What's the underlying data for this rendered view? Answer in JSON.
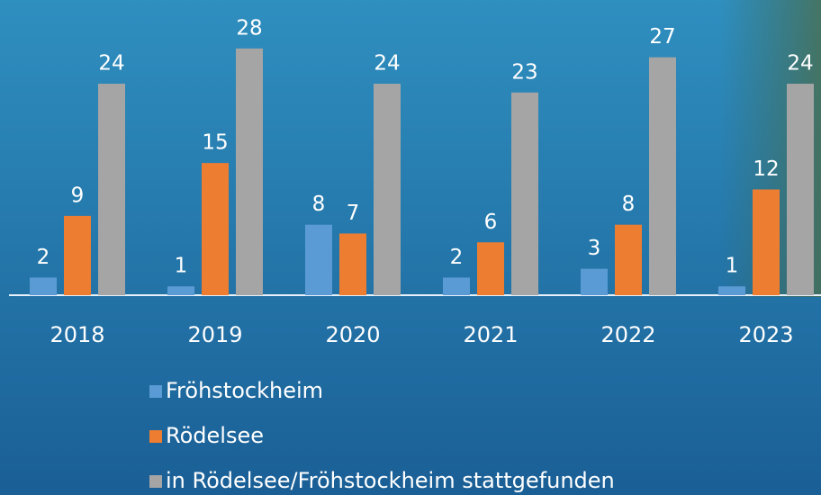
{
  "chart_data": {
    "type": "bar",
    "categories": [
      "2018",
      "2019",
      "2020",
      "2021",
      "2022",
      "2023"
    ],
    "series": [
      {
        "name": "Fröhstockheim",
        "color": "#5b9bd5",
        "values": [
          2,
          1,
          8,
          2,
          3,
          1
        ]
      },
      {
        "name": "Rödelsee",
        "color": "#ed7d31",
        "values": [
          9,
          15,
          7,
          6,
          8,
          12
        ]
      },
      {
        "name": "in Rödelsee/Fröhstockheim stattgefunden",
        "color": "#a5a5a5",
        "values": [
          24,
          28,
          24,
          23,
          27,
          24
        ]
      }
    ],
    "ylim": [
      0,
      33.5
    ]
  }
}
